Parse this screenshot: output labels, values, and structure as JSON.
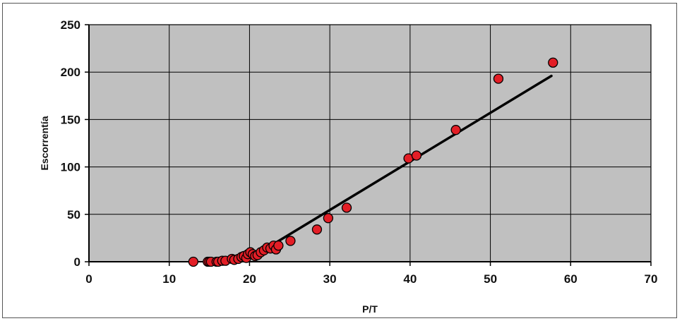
{
  "chart_data": {
    "type": "scatter",
    "title": "",
    "xlabel": "P/T",
    "ylabel": "Escorrentía",
    "xlim": [
      0,
      70
    ],
    "ylim": [
      0,
      250
    ],
    "x_ticks": [
      "0",
      "10",
      "20",
      "30",
      "40",
      "50",
      "60",
      "70"
    ],
    "y_ticks": [
      "0",
      "50",
      "100",
      "150",
      "200",
      "250"
    ],
    "grid": true,
    "legend": "none",
    "colors": {
      "plot_background": "#c0c0c0",
      "grid": "#000000",
      "marker_fill": "#e31e26",
      "marker_edge": "#000000",
      "trend_line": "#000000"
    },
    "series": [
      {
        "kind": "points",
        "points": [
          [
            13.0,
            0
          ],
          [
            14.8,
            0
          ],
          [
            15.0,
            0
          ],
          [
            15.2,
            0
          ],
          [
            15.9,
            0
          ],
          [
            16.1,
            0
          ],
          [
            16.6,
            1
          ],
          [
            17.0,
            1
          ],
          [
            17.8,
            3
          ],
          [
            18.1,
            2
          ],
          [
            18.6,
            3
          ],
          [
            19.0,
            5
          ],
          [
            19.3,
            6
          ],
          [
            19.6,
            4
          ],
          [
            19.8,
            8
          ],
          [
            20.1,
            10
          ],
          [
            20.4,
            8
          ],
          [
            20.7,
            6
          ],
          [
            21.0,
            7
          ],
          [
            21.4,
            10
          ],
          [
            21.8,
            12
          ],
          [
            22.2,
            15
          ],
          [
            22.6,
            14
          ],
          [
            23.0,
            17
          ],
          [
            23.3,
            13
          ],
          [
            23.6,
            17
          ],
          [
            25.1,
            22
          ],
          [
            28.4,
            34
          ],
          [
            29.8,
            46
          ],
          [
            32.1,
            57
          ],
          [
            39.8,
            109
          ],
          [
            40.8,
            112
          ],
          [
            45.7,
            139
          ],
          [
            51.0,
            193
          ],
          [
            57.8,
            210
          ]
        ]
      },
      {
        "kind": "trend_line",
        "points": [
          [
            21.3,
            10
          ],
          [
            57.6,
            196
          ]
        ]
      }
    ]
  }
}
